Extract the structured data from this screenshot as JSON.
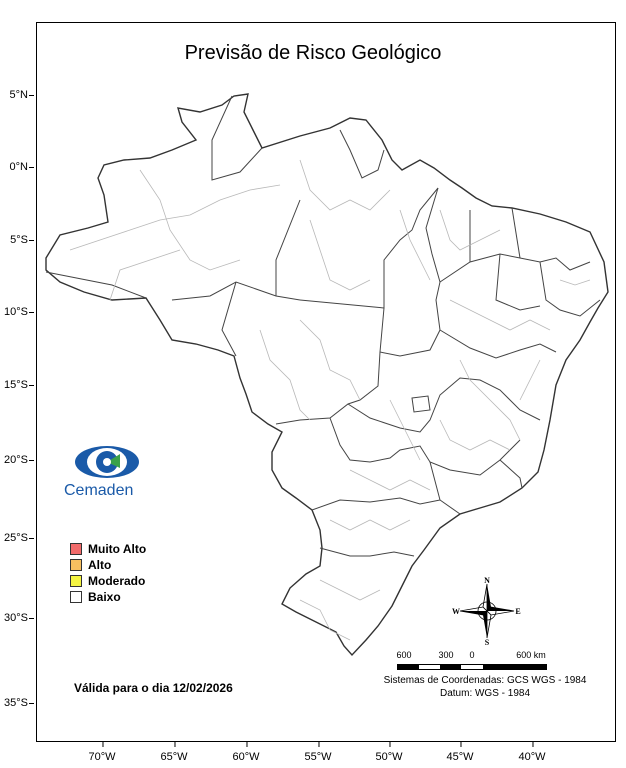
{
  "title": "Previsão de Risco Geológico",
  "lat_ticks": [
    "5°N",
    "0°N",
    "5°S",
    "10°S",
    "15°S",
    "20°S",
    "25°S",
    "30°S",
    "35°S"
  ],
  "lon_ticks": [
    "70°W",
    "65°W",
    "60°W",
    "55°W",
    "50°W",
    "45°W",
    "40°W"
  ],
  "logo_text": "Cemaden",
  "legend": [
    {
      "label": "Muito Alto",
      "color": "#f26b6b"
    },
    {
      "label": "Alto",
      "color": "#f7c060"
    },
    {
      "label": "Moderado",
      "color": "#f5f542"
    },
    {
      "label": "Baixo",
      "color": "#ffffff"
    }
  ],
  "validity": "Válida para o dia 12/02/2026",
  "compass": {
    "n": "N",
    "s": "S",
    "e": "E",
    "w": "W"
  },
  "scale": {
    "labels": [
      "600",
      "300",
      "0",
      "600 km"
    ]
  },
  "crs_line1": "Sistemas de Coordenadas: GCS WGS - 1984",
  "crs_line2": "Datum: WGS - 1984",
  "colors": {
    "border": "#333333",
    "internal": "#b8b8b8",
    "logo_blue": "#1a5aa8",
    "logo_green": "#3aa14a"
  }
}
